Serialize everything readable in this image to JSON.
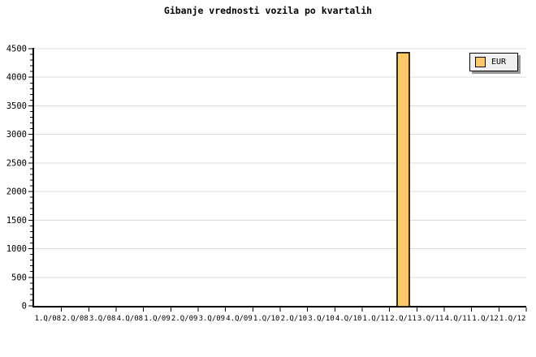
{
  "title": "Gibanje vrednosti vozila po kvartalih",
  "chart_data": {
    "type": "bar",
    "title": "Gibanje vrednosti vozila po kvartalih",
    "categories": [
      "1.Q/08",
      "2.Q/08",
      "3.Q/08",
      "4.Q/08",
      "1.Q/09",
      "2.Q/09",
      "3.Q/09",
      "4.Q/09",
      "1.Q/10",
      "2.Q/10",
      "3.Q/10",
      "4.Q/10",
      "1.Q/11",
      "2.Q/11",
      "3.Q/11",
      "4.Q/11",
      "1.Q/12",
      "1.Q/12"
    ],
    "values": [
      0,
      0,
      0,
      0,
      0,
      0,
      0,
      0,
      0,
      0,
      0,
      0,
      0,
      4430,
      0,
      0,
      0,
      0
    ],
    "series_name": "EUR",
    "legend": [
      "EUR"
    ],
    "legend_position": "top-right",
    "xlabel": "",
    "ylabel": "",
    "ylim": [
      0,
      4500
    ],
    "y_major_step": 500,
    "y_minor_step": 100,
    "grid": "horizontal-major",
    "colors": {
      "bar_fill": "#FDC968",
      "bar_border": "#000000",
      "grid": "#DCDCDC",
      "axis": "#000000",
      "text": "#000000",
      "legend_bg": "#F1F1F1",
      "legend_shadow": "#999999",
      "background": "#FFFFFF"
    }
  }
}
